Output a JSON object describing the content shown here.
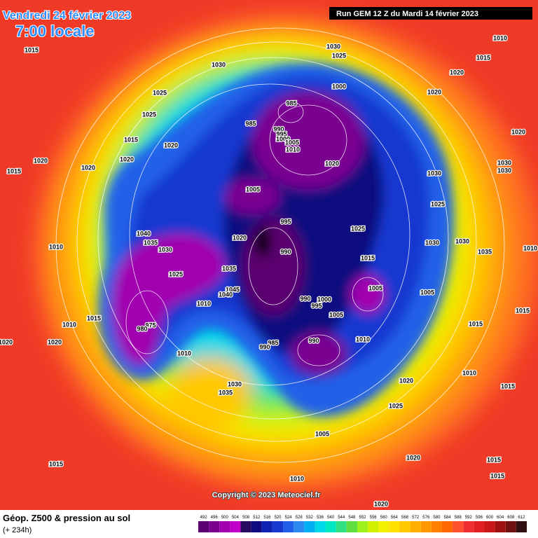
{
  "header": {
    "date": "Vendredi 24 février 2023",
    "time": "7:00 locale",
    "run": "Run GEM 12 Z du Mardi 14 février 2023"
  },
  "copyright": "Copyright © 2023 Meteociel.fr",
  "footer": {
    "title": "Géop. Z500 & pression au sol",
    "lead": "(+ 234h)"
  },
  "legend": {
    "scale": [
      492,
      496,
      500,
      504,
      508,
      512,
      516,
      520,
      524,
      528,
      532,
      536,
      540,
      544,
      548,
      552,
      556,
      560,
      564,
      568,
      572,
      576,
      580,
      584,
      588,
      592,
      596,
      600,
      604,
      608,
      612
    ],
    "colors": [
      "#5a0070",
      "#7a0090",
      "#a000b0",
      "#c000c8",
      "#2a0a60",
      "#100a80",
      "#1020b0",
      "#1838d0",
      "#2060e8",
      "#2a88f0",
      "#00b0f0",
      "#00d8e8",
      "#00e8c0",
      "#30e080",
      "#60e040",
      "#a0f020",
      "#d0f000",
      "#f0f000",
      "#ffe000",
      "#ffc800",
      "#ffb000",
      "#ff9800",
      "#ff8000",
      "#ff6800",
      "#ff5030",
      "#f03030",
      "#e02020",
      "#c81818",
      "#a01010",
      "#701010",
      "#301010"
    ]
  },
  "isobars": [
    "1015",
    "1030",
    "1030",
    "1025",
    "1010",
    "1015",
    "1020",
    "1025",
    "1025",
    "1000",
    "985",
    "985",
    "990",
    "995",
    "1000",
    "1005",
    "1010",
    "1015",
    "1020",
    "1020",
    "1020",
    "1020",
    "1020",
    "1020",
    "1020",
    "1030",
    "1030",
    "1030",
    "1015",
    "1005",
    "1025",
    "995",
    "1025",
    "1030",
    "1030",
    "1035",
    "1040",
    "1035",
    "1030",
    "1020",
    "990",
    "1015",
    "1010",
    "1010",
    "1025",
    "1035",
    "1045",
    "1040",
    "1010",
    "1005",
    "1005",
    "990",
    "995",
    "1000",
    "1005",
    "1015",
    "1010",
    "975",
    "980",
    "1010",
    "990",
    "985",
    "990",
    "1020",
    "1020",
    "1010",
    "1015",
    "1015",
    "1030",
    "1035",
    "1020",
    "1025",
    "1010",
    "1015",
    "1005",
    "1020",
    "1015",
    "1010",
    "1015",
    "1015",
    "1020"
  ]
}
